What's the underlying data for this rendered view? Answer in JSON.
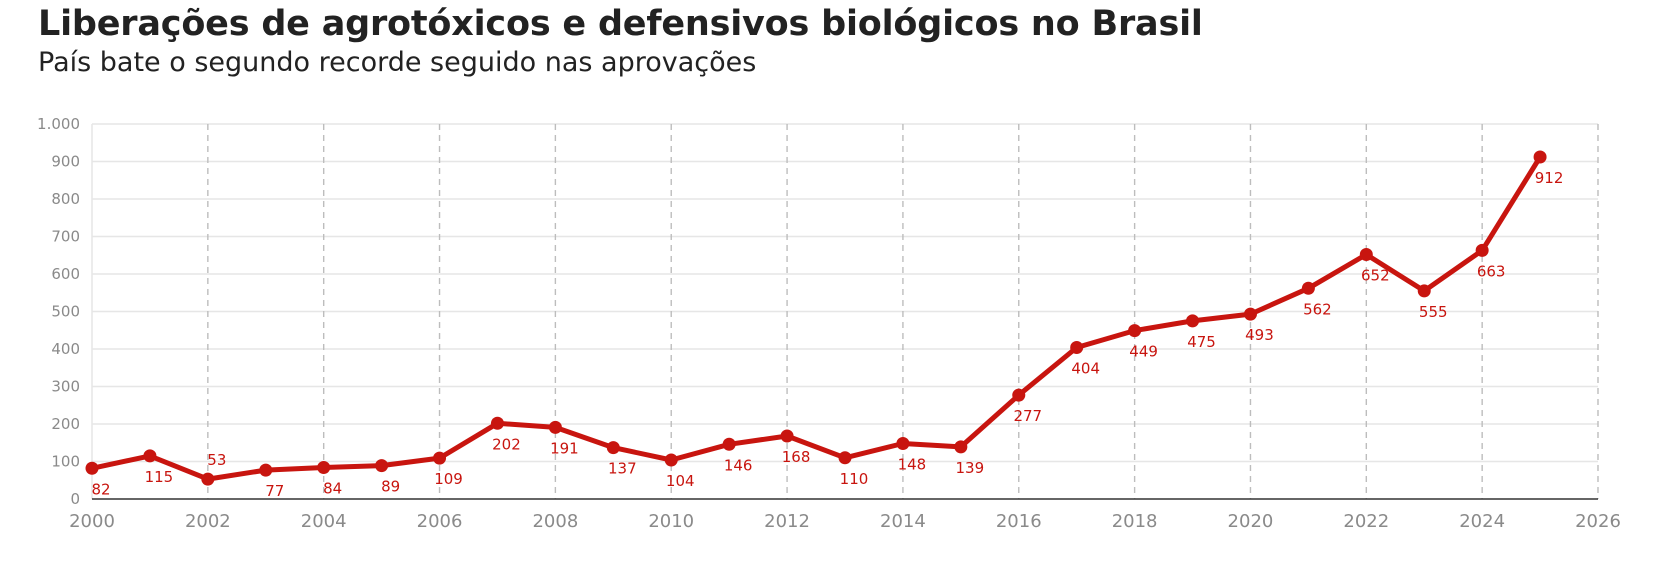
{
  "header": {
    "title": "Liberações de agrotóxicos e defensivos biológicos no Brasil",
    "subtitle": "País bate o segundo recorde seguido nas aprovações"
  },
  "colors": {
    "series": "#c8150f",
    "grid": "#e6e6e6",
    "vgrid": "#bdbdbd",
    "axis": "#333333",
    "tick": "#8a8a8a"
  },
  "chart_data": {
    "type": "line",
    "title": "Liberações de agrotóxicos e defensivos biológicos no Brasil",
    "subtitle": "País bate o segundo recorde seguido nas aprovações",
    "xlabel": "",
    "ylabel": "",
    "xlim": [
      2000,
      2026
    ],
    "ylim": [
      0,
      1000
    ],
    "x_ticks": [
      2000,
      2002,
      2004,
      2006,
      2008,
      2010,
      2012,
      2014,
      2016,
      2018,
      2020,
      2022,
      2024,
      2026
    ],
    "y_ticks": [
      0,
      100,
      200,
      300,
      400,
      500,
      600,
      700,
      800,
      900,
      1000
    ],
    "y_tick_labels": [
      "0",
      "100",
      "200",
      "300",
      "400",
      "500",
      "600",
      "700",
      "800",
      "900",
      "1.000"
    ],
    "grid": true,
    "legend": "none",
    "x": [
      2000,
      2001,
      2002,
      2003,
      2004,
      2005,
      2006,
      2007,
      2008,
      2009,
      2010,
      2011,
      2012,
      2013,
      2014,
      2015,
      2016,
      2017,
      2018,
      2019,
      2020,
      2021,
      2022,
      2023,
      2024,
      2025
    ],
    "series": [
      {
        "values": [
          82,
          115,
          53,
          77,
          84,
          89,
          109,
          202,
          191,
          137,
          104,
          146,
          168,
          110,
          148,
          139,
          277,
          404,
          449,
          475,
          493,
          562,
          652,
          555,
          663,
          912
        ],
        "labels": [
          "82",
          "115",
          "53",
          "77",
          "84",
          "89",
          "109",
          "202",
          "191",
          "137",
          "104",
          "146",
          "168",
          "110",
          "148",
          "139",
          "277",
          "404",
          "449",
          "475",
          "493",
          "562",
          "652",
          "555",
          "663",
          "912"
        ]
      }
    ]
  }
}
